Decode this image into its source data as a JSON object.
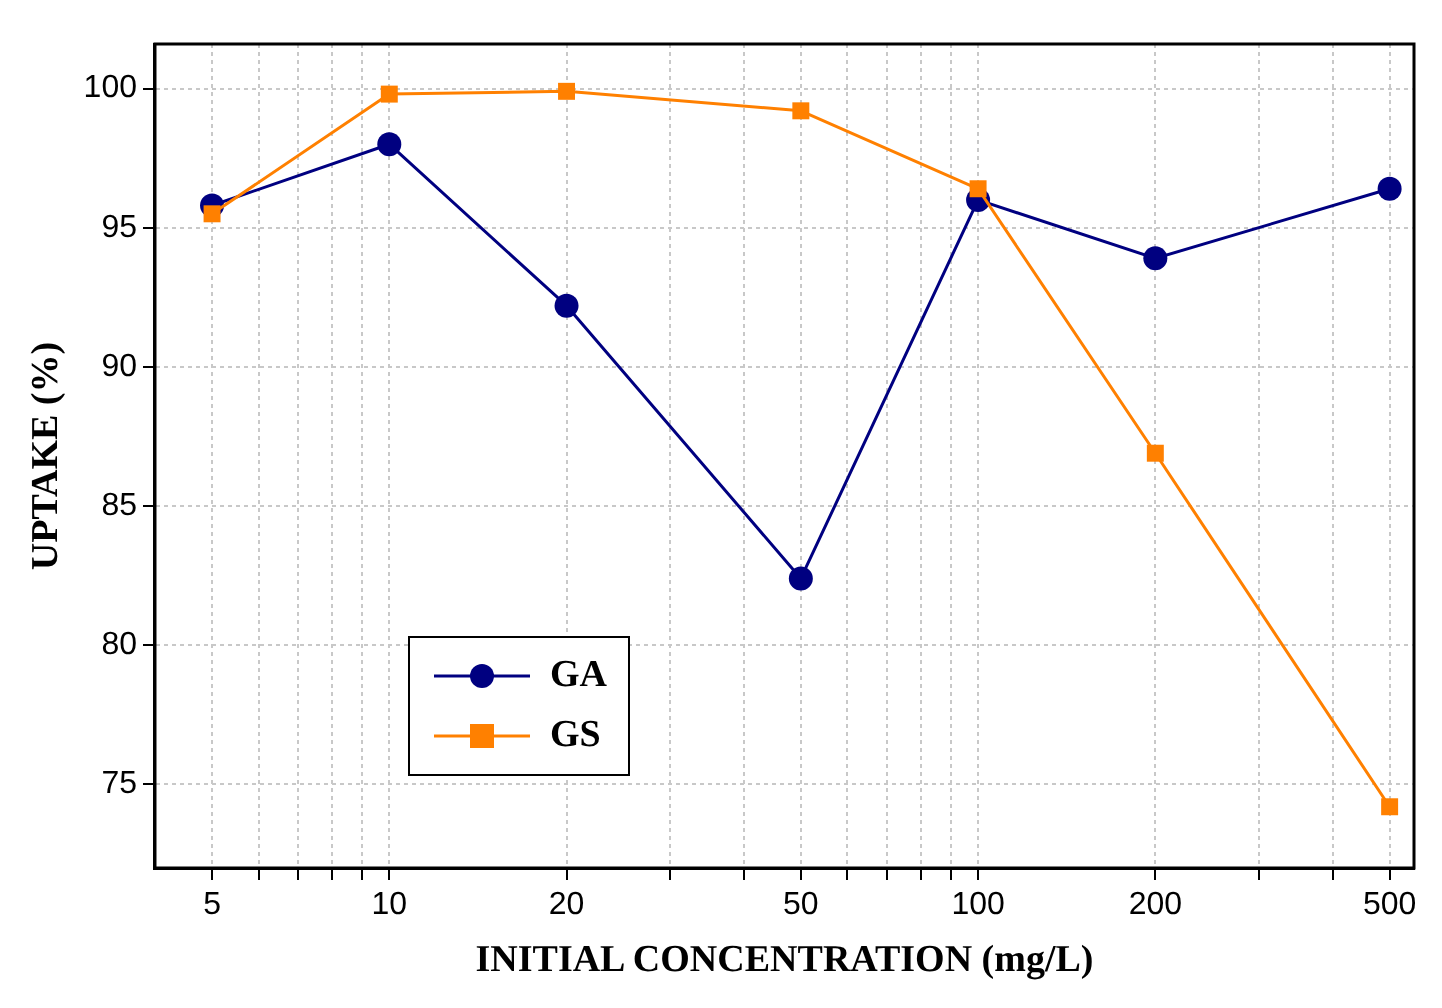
{
  "chart_data": {
    "type": "line",
    "xlabel": "INITIAL CONCENTRATION (mg/L)",
    "ylabel": "UPTAKE (%)",
    "x": [
      5,
      10,
      20,
      50,
      100,
      200,
      500
    ],
    "series": [
      {
        "name": "GA",
        "color": "#000080",
        "marker": "circle",
        "values": [
          95.8,
          98.0,
          92.2,
          82.4,
          96.0,
          93.9,
          96.4
        ]
      },
      {
        "name": "GS",
        "color": "#ff8000",
        "marker": "square",
        "values": [
          95.5,
          99.8,
          99.9,
          99.2,
          96.4,
          86.9,
          74.2
        ]
      }
    ],
    "log": "x",
    "xlim": [
      4,
      550
    ],
    "xticks": [
      5,
      {
        "value": 6,
        "label": null
      },
      {
        "value": 7,
        "label": null
      },
      {
        "value": 8,
        "label": null
      },
      {
        "value": 9,
        "label": null
      },
      10,
      20,
      {
        "value": 30,
        "label": null
      },
      {
        "value": 40,
        "label": null
      },
      50,
      {
        "value": 60,
        "label": null
      },
      {
        "value": 70,
        "label": null
      },
      {
        "value": 80,
        "label": null
      },
      {
        "value": 90,
        "label": null
      },
      100,
      200,
      {
        "value": 300,
        "label": null
      },
      {
        "value": 400,
        "label": null
      },
      500
    ],
    "ylim": [
      72,
      101.6
    ],
    "yticks": [
      75,
      80,
      85,
      90,
      95,
      100
    ],
    "grid": true,
    "legend": "bottom left",
    "line_style": "solid"
  }
}
